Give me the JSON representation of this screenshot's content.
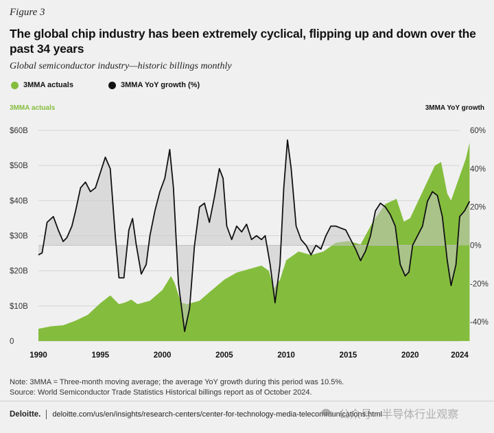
{
  "figure_label": "Figure 3",
  "title": "The global chip industry has been extremely cyclical, flipping up and down over the past 34 years",
  "subtitle": "Global semiconductor industry—historic billings monthly",
  "legend": [
    {
      "label": "3MMA actuals",
      "color": "#84bd3d"
    },
    {
      "label": "3MMA YoY growth (%)",
      "color": "#111111"
    }
  ],
  "notes": [
    "Note: 3MMA = Three-month moving average; the average YoY growth during this period was 10.5%.",
    "Source: World Semiconductor Trade Statistics Historical billings report as of October 2024."
  ],
  "footer": {
    "brand": "Deloitte.",
    "url": "deloitte.com/us/en/insights/research-centers/center-for-technology-media-telecommunications.html"
  },
  "watermark": "公众号 · 半导体行业观察",
  "chart_data": {
    "type": "area",
    "left_axis_title": "3MMA actuals",
    "right_axis_title": "3MMA YoY growth",
    "x_ticks": [
      "1990",
      "1995",
      "2000",
      "2005",
      "2010",
      "2015",
      "2020",
      "2024"
    ],
    "xlim": [
      1990,
      2024
    ],
    "y_left": {
      "ticks": [
        "0",
        "$10B",
        "$20B",
        "$30B",
        "$40B",
        "$50B",
        "$60B"
      ],
      "lim": [
        0,
        60
      ]
    },
    "y_right": {
      "ticks": [
        "-40%",
        "-20%",
        "0%",
        "20%",
        "40%",
        "60%"
      ],
      "lim": [
        -50,
        60
      ]
    },
    "colors": {
      "actuals": "#84bd3d",
      "growth_line": "#111111",
      "growth_fill": "#c8c8c8",
      "grid": "#d4d4d4"
    },
    "series": [
      {
        "name": "3MMA actuals",
        "kind": "area",
        "axis": "left",
        "points": [
          [
            1990.0,
            3.5
          ],
          [
            1991.0,
            4.2
          ],
          [
            1992.0,
            4.5
          ],
          [
            1993.0,
            5.8
          ],
          [
            1994.0,
            7.5
          ],
          [
            1995.0,
            10.8
          ],
          [
            1995.8,
            13.0
          ],
          [
            1996.5,
            10.5
          ],
          [
            1997.0,
            11.0
          ],
          [
            1997.5,
            11.8
          ],
          [
            1998.0,
            10.5
          ],
          [
            1999.0,
            11.5
          ],
          [
            2000.0,
            14.5
          ],
          [
            2000.7,
            18.5
          ],
          [
            2001.0,
            16.5
          ],
          [
            2001.5,
            11.0
          ],
          [
            2002.0,
            10.5
          ],
          [
            2003.0,
            11.5
          ],
          [
            2004.0,
            14.5
          ],
          [
            2005.0,
            17.5
          ],
          [
            2006.0,
            19.5
          ],
          [
            2007.0,
            20.5
          ],
          [
            2008.0,
            21.5
          ],
          [
            2008.6,
            20.0
          ],
          [
            2009.0,
            15.0
          ],
          [
            2009.5,
            17.5
          ],
          [
            2010.0,
            23.0
          ],
          [
            2011.0,
            25.5
          ],
          [
            2012.0,
            24.5
          ],
          [
            2013.0,
            25.5
          ],
          [
            2014.0,
            28.0
          ],
          [
            2015.0,
            28.5
          ],
          [
            2016.0,
            27.5
          ],
          [
            2017.0,
            34.0
          ],
          [
            2018.0,
            39.0
          ],
          [
            2018.9,
            40.5
          ],
          [
            2019.5,
            34.0
          ],
          [
            2020.0,
            35.0
          ],
          [
            2021.0,
            42.5
          ],
          [
            2022.0,
            50.0
          ],
          [
            2022.5,
            51.0
          ],
          [
            2023.0,
            42.0
          ],
          [
            2023.3,
            40.0
          ],
          [
            2024.0,
            47.0
          ],
          [
            2024.5,
            52.0
          ],
          [
            2024.8,
            56.5
          ]
        ]
      },
      {
        "name": "3MMA YoY growth (%)",
        "kind": "line",
        "axis": "right",
        "points": [
          [
            1990.0,
            -5
          ],
          [
            1990.3,
            -4
          ],
          [
            1990.7,
            12
          ],
          [
            1991.2,
            15
          ],
          [
            1991.6,
            8
          ],
          [
            1992.0,
            2
          ],
          [
            1992.3,
            4
          ],
          [
            1992.7,
            10
          ],
          [
            1993.0,
            18
          ],
          [
            1993.4,
            30
          ],
          [
            1993.8,
            33
          ],
          [
            1994.2,
            28
          ],
          [
            1994.6,
            30
          ],
          [
            1995.0,
            38
          ],
          [
            1995.4,
            46
          ],
          [
            1995.8,
            40
          ],
          [
            1996.2,
            5
          ],
          [
            1996.5,
            -17
          ],
          [
            1996.9,
            -17
          ],
          [
            1997.3,
            8
          ],
          [
            1997.6,
            14
          ],
          [
            1997.9,
            0
          ],
          [
            1998.3,
            -15
          ],
          [
            1998.7,
            -10
          ],
          [
            1999.0,
            5
          ],
          [
            1999.4,
            18
          ],
          [
            1999.8,
            28
          ],
          [
            2000.2,
            35
          ],
          [
            2000.6,
            50
          ],
          [
            2000.9,
            30
          ],
          [
            2001.3,
            -20
          ],
          [
            2001.8,
            -45
          ],
          [
            2002.2,
            -33
          ],
          [
            2002.6,
            0
          ],
          [
            2003.0,
            20
          ],
          [
            2003.4,
            22
          ],
          [
            2003.8,
            12
          ],
          [
            2004.2,
            25
          ],
          [
            2004.6,
            40
          ],
          [
            2004.9,
            35
          ],
          [
            2005.2,
            10
          ],
          [
            2005.6,
            3
          ],
          [
            2006.0,
            10
          ],
          [
            2006.4,
            7
          ],
          [
            2006.8,
            11
          ],
          [
            2007.2,
            3
          ],
          [
            2007.6,
            5
          ],
          [
            2008.0,
            3
          ],
          [
            2008.3,
            5
          ],
          [
            2008.7,
            -10
          ],
          [
            2009.1,
            -30
          ],
          [
            2009.5,
            -10
          ],
          [
            2009.8,
            30
          ],
          [
            2010.1,
            55
          ],
          [
            2010.4,
            40
          ],
          [
            2010.8,
            10
          ],
          [
            2011.2,
            3
          ],
          [
            2011.6,
            0
          ],
          [
            2012.0,
            -5
          ],
          [
            2012.4,
            0
          ],
          [
            2012.8,
            -2
          ],
          [
            2013.2,
            5
          ],
          [
            2013.6,
            10
          ],
          [
            2014.0,
            10
          ],
          [
            2014.4,
            9
          ],
          [
            2014.8,
            8
          ],
          [
            2015.2,
            3
          ],
          [
            2015.6,
            -2
          ],
          [
            2016.0,
            -8
          ],
          [
            2016.4,
            -3
          ],
          [
            2016.8,
            5
          ],
          [
            2017.2,
            18
          ],
          [
            2017.6,
            22
          ],
          [
            2018.0,
            20
          ],
          [
            2018.4,
            16
          ],
          [
            2018.8,
            10
          ],
          [
            2019.2,
            -10
          ],
          [
            2019.6,
            -16
          ],
          [
            2019.9,
            -14
          ],
          [
            2020.2,
            0
          ],
          [
            2020.6,
            5
          ],
          [
            2021.0,
            10
          ],
          [
            2021.4,
            23
          ],
          [
            2021.8,
            28
          ],
          [
            2022.2,
            26
          ],
          [
            2022.6,
            15
          ],
          [
            2023.0,
            -8
          ],
          [
            2023.3,
            -21
          ],
          [
            2023.7,
            -10
          ],
          [
            2024.0,
            15
          ],
          [
            2024.4,
            18
          ],
          [
            2024.8,
            23
          ]
        ]
      }
    ]
  }
}
